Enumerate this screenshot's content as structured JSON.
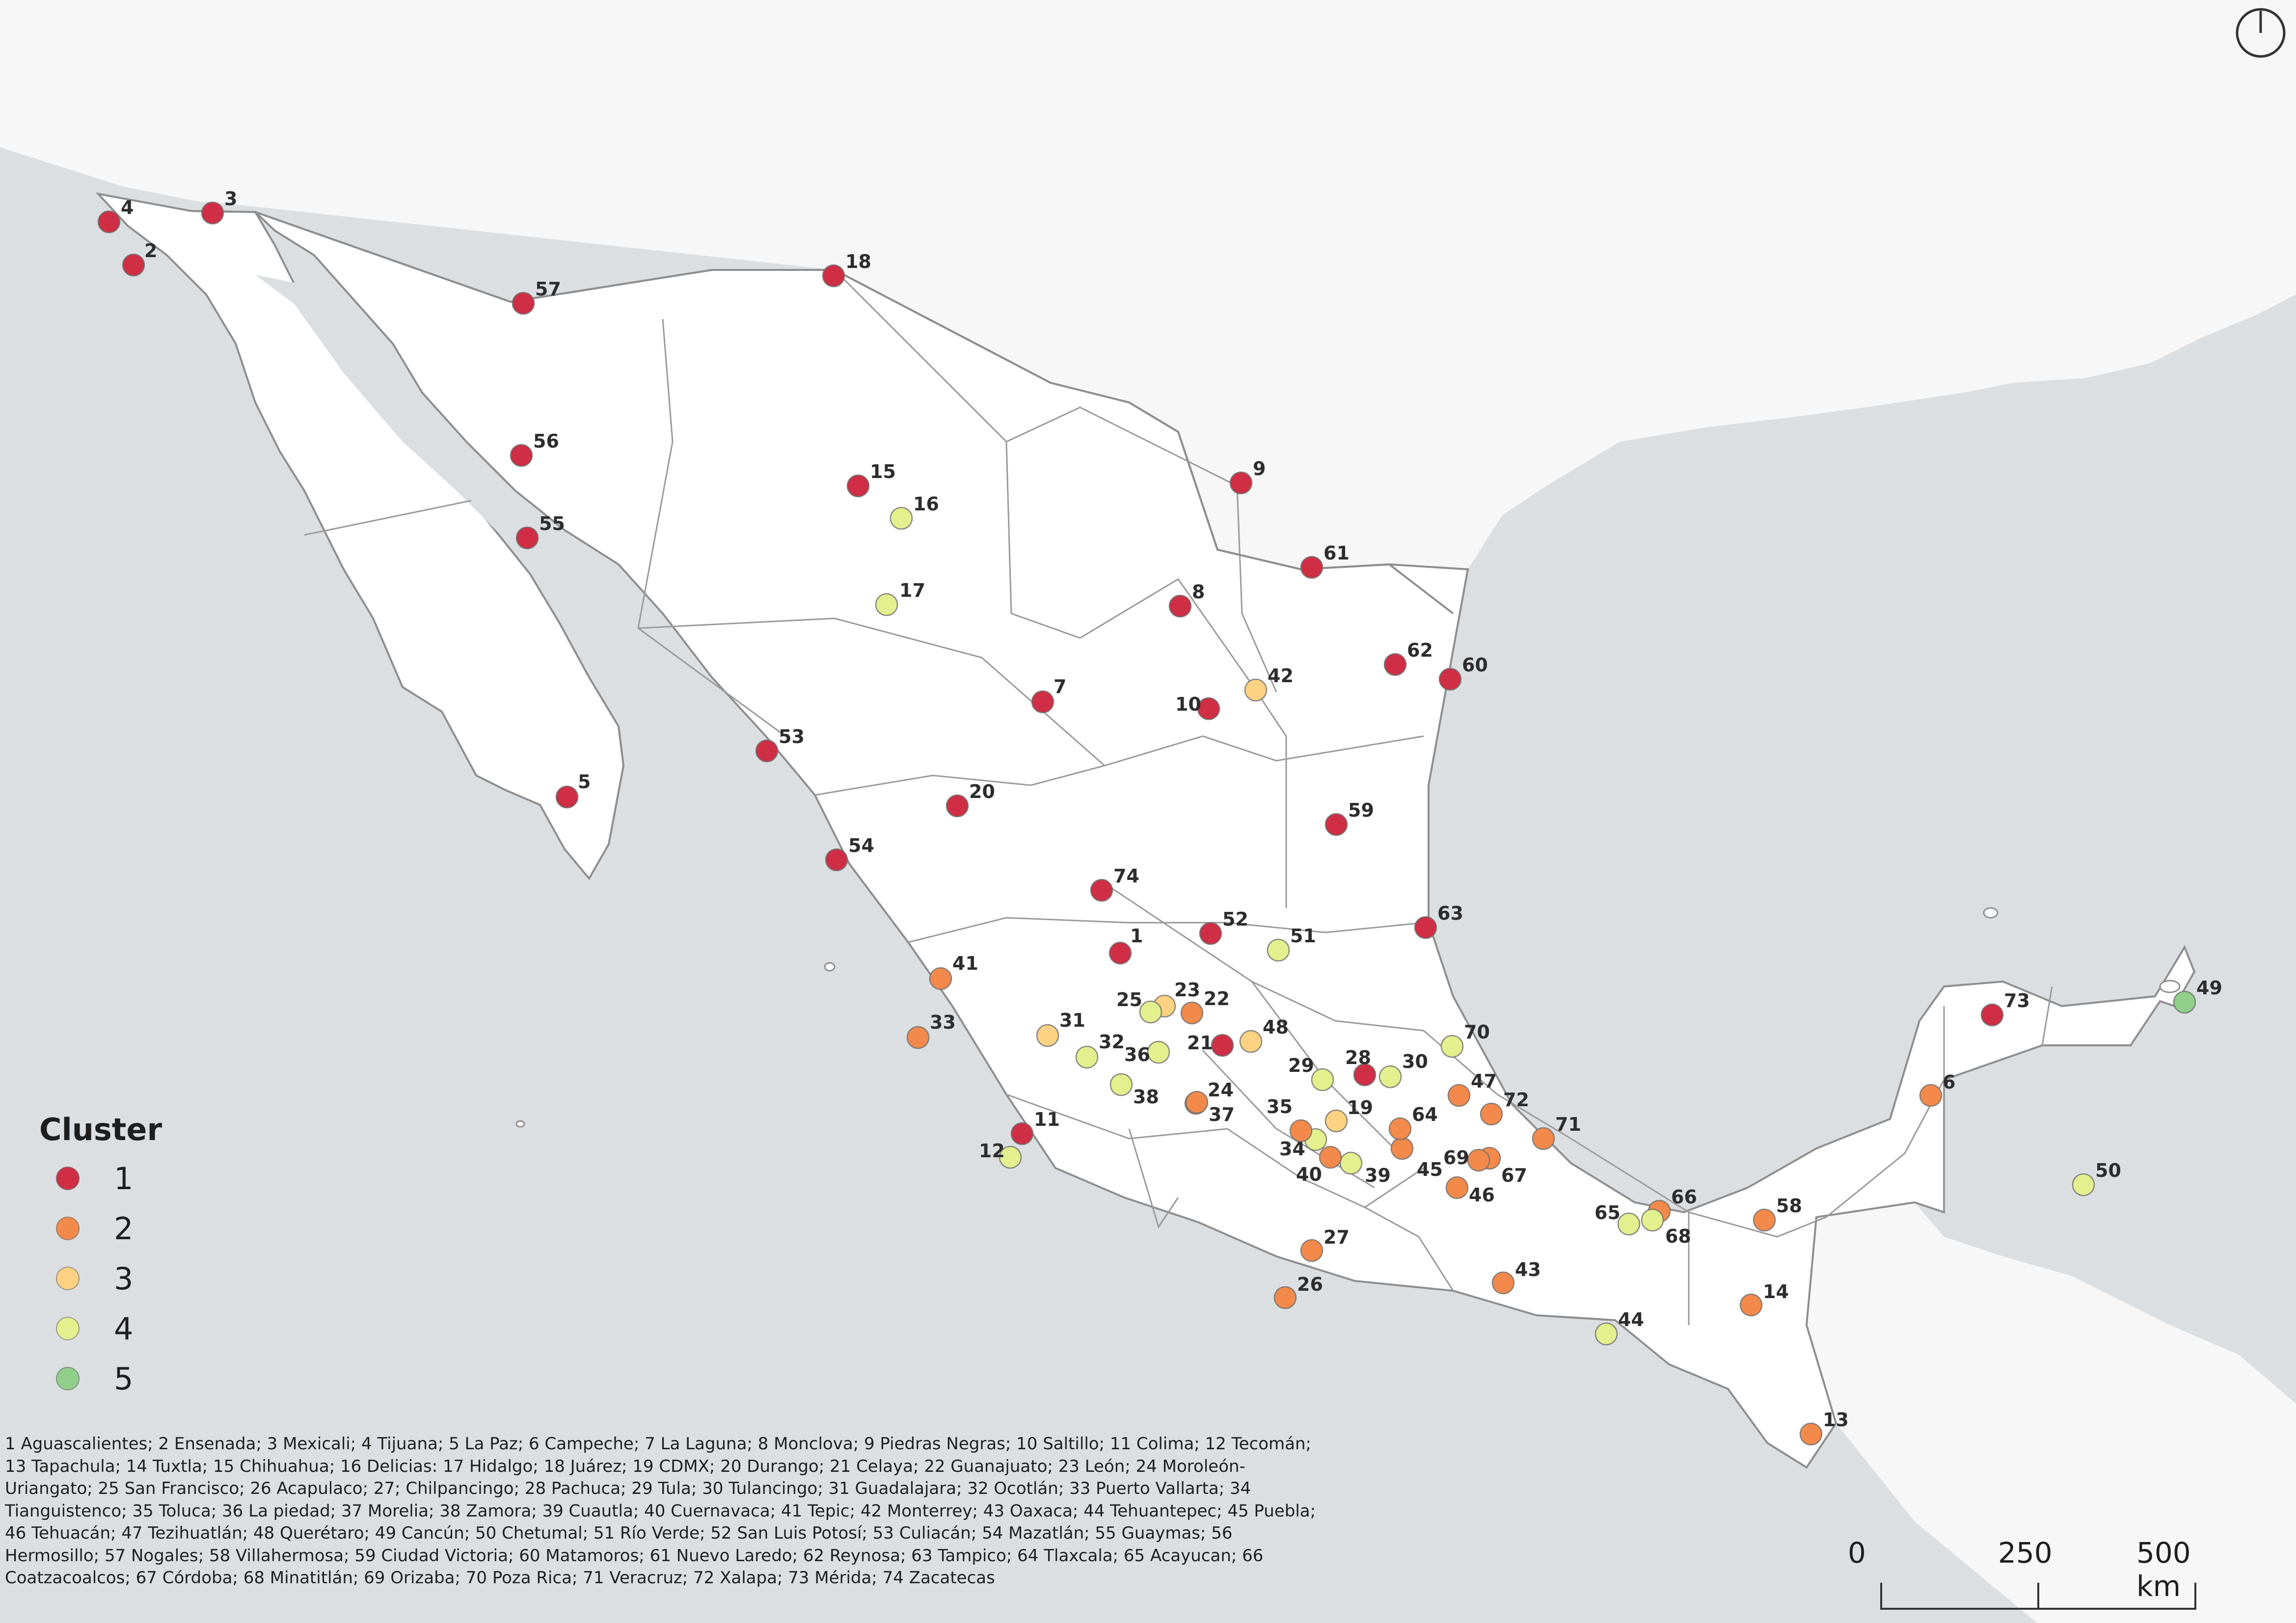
{
  "legend": {
    "title": "Cluster",
    "items": [
      {
        "label": "1",
        "color": "#cf2e44"
      },
      {
        "label": "2",
        "color": "#f38a4c"
      },
      {
        "label": "3",
        "color": "#fdd383"
      },
      {
        "label": "4",
        "color": "#e4f08e"
      },
      {
        "label": "5",
        "color": "#8fcf8a"
      }
    ]
  },
  "city_list_text": "1 Aguascalientes; 2 Ensenada; 3 Mexicali; 4 Tijuana; 5 La Paz; 6 Campeche; 7 La Laguna; 8 Monclova; 9 Piedras Negras; 10 Saltillo; 11 Colima; 12 Tecomán; 13 Tapachula; 14 Tuxtla; 15 Chihuahua; 16 Delicias: 17 Hidalgo; 18 Juárez; 19 CDMX; 20 Durango; 21 Celaya; 22 Guanajuato; 23 León; 24 Moroleón-Uriangato; 25 San Francisco; 26 Acapulaco; 27; Chilpancingo; 28 Pachuca; 29 Tula; 30 Tulancingo; 31 Guadalajara; 32 Ocotlán; 33 Puerto Vallarta; 34 Tianguistenco; 35 Toluca; 36 La piedad; 37 Morelia; 38 Zamora; 39 Cuautla; 40 Cuernavaca; 41 Tepic; 42 Monterrey; 43 Oaxaca; 44 Tehuantepec; 45 Puebla; 46 Tehuacán; 47 Tezihuatlán; 48 Querétaro; 49 Cancún; 50 Chetumal; 51 Río Verde; 52 San Luis Potosí; 53 Culiacán; 54 Mazatlán; 55 Guaymas; 56 Hermosillo; 57 Nogales; 58 Villahermosa; 59 Ciudad Victoria; 60 Matamoros; 61 Nuevo Laredo; 62 Reynosa; 63 Tampico; 64 Tlaxcala; 65 Acayucan; 66 Coatzacoalcos; 67 Córdoba; 68 Minatitlán; 69 Orizaba; 70 Poza Rica; 71 Veracruz; 72 Xalapa; 73 Mérida; 74 Zacatecas",
  "scale_bar": {
    "labels": [
      "0",
      "250",
      "500 km"
    ]
  },
  "north_arrow_icon": "north-arrow-icon",
  "colors": {
    "sea": "#dcdfe2",
    "land": "#f7f7f7",
    "mexico": "#ffffff",
    "border": "#9a9a9a"
  },
  "cities": [
    {
      "id": "1",
      "cluster": 1
    },
    {
      "id": "2",
      "cluster": 1
    },
    {
      "id": "3",
      "cluster": 1
    },
    {
      "id": "4",
      "cluster": 1
    },
    {
      "id": "5",
      "cluster": 1
    },
    {
      "id": "6",
      "cluster": 2
    },
    {
      "id": "7",
      "cluster": 1
    },
    {
      "id": "8",
      "cluster": 1
    },
    {
      "id": "9",
      "cluster": 1
    },
    {
      "id": "10",
      "cluster": 1
    },
    {
      "id": "11",
      "cluster": 1
    },
    {
      "id": "12",
      "cluster": 4
    },
    {
      "id": "13",
      "cluster": 2
    },
    {
      "id": "14",
      "cluster": 2
    },
    {
      "id": "15",
      "cluster": 1
    },
    {
      "id": "16",
      "cluster": 4
    },
    {
      "id": "17",
      "cluster": 4
    },
    {
      "id": "18",
      "cluster": 1
    },
    {
      "id": "19",
      "cluster": 3
    },
    {
      "id": "20",
      "cluster": 1
    },
    {
      "id": "21",
      "cluster": 1
    },
    {
      "id": "22",
      "cluster": 2
    },
    {
      "id": "23",
      "cluster": 3
    },
    {
      "id": "24",
      "cluster": 2
    },
    {
      "id": "25",
      "cluster": 4
    },
    {
      "id": "26",
      "cluster": 2
    },
    {
      "id": "27",
      "cluster": 2
    },
    {
      "id": "28",
      "cluster": 1
    },
    {
      "id": "29",
      "cluster": 4
    },
    {
      "id": "30",
      "cluster": 4
    },
    {
      "id": "31",
      "cluster": 3
    },
    {
      "id": "32",
      "cluster": 4
    },
    {
      "id": "33",
      "cluster": 2
    },
    {
      "id": "34",
      "cluster": 4
    },
    {
      "id": "35",
      "cluster": 2
    },
    {
      "id": "36",
      "cluster": 4
    },
    {
      "id": "37",
      "cluster": 2
    },
    {
      "id": "38",
      "cluster": 4
    },
    {
      "id": "39",
      "cluster": 4
    },
    {
      "id": "40",
      "cluster": 2
    },
    {
      "id": "41",
      "cluster": 2
    },
    {
      "id": "42",
      "cluster": 3
    },
    {
      "id": "43",
      "cluster": 2
    },
    {
      "id": "44",
      "cluster": 4
    },
    {
      "id": "45",
      "cluster": 2
    },
    {
      "id": "46",
      "cluster": 2
    },
    {
      "id": "47",
      "cluster": 2
    },
    {
      "id": "48",
      "cluster": 3
    },
    {
      "id": "49",
      "cluster": 5
    },
    {
      "id": "50",
      "cluster": 4
    },
    {
      "id": "51",
      "cluster": 4
    },
    {
      "id": "52",
      "cluster": 1
    },
    {
      "id": "53",
      "cluster": 1
    },
    {
      "id": "54",
      "cluster": 1
    },
    {
      "id": "55",
      "cluster": 1
    },
    {
      "id": "56",
      "cluster": 1
    },
    {
      "id": "57",
      "cluster": 1
    },
    {
      "id": "58",
      "cluster": 2
    },
    {
      "id": "59",
      "cluster": 1
    },
    {
      "id": "60",
      "cluster": 1
    },
    {
      "id": "61",
      "cluster": 1
    },
    {
      "id": "62",
      "cluster": 1
    },
    {
      "id": "63",
      "cluster": 1
    },
    {
      "id": "64",
      "cluster": 2
    },
    {
      "id": "65",
      "cluster": 4
    },
    {
      "id": "66",
      "cluster": 2
    },
    {
      "id": "67",
      "cluster": 2
    },
    {
      "id": "68",
      "cluster": 4
    },
    {
      "id": "69",
      "cluster": 2
    },
    {
      "id": "70",
      "cluster": 4
    },
    {
      "id": "71",
      "cluster": 2
    },
    {
      "id": "72",
      "cluster": 2
    },
    {
      "id": "73",
      "cluster": 1
    },
    {
      "id": "74",
      "cluster": 1
    }
  ]
}
